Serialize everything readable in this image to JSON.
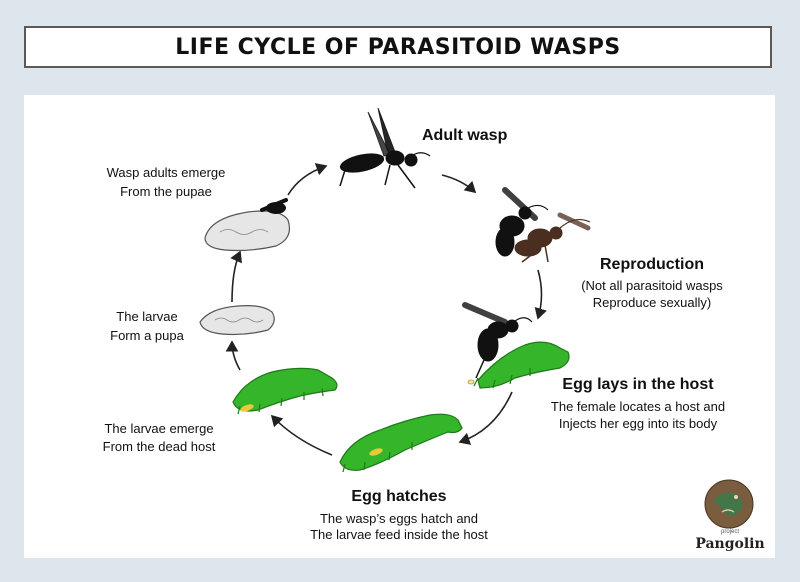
{
  "title": "LIFE CYCLE OF PARASITOID WASPS",
  "stages": {
    "adult": {
      "heading": "Adult wasp"
    },
    "reproduction": {
      "heading": "Reproduction",
      "line1": "(Not all parasitoid wasps",
      "line2": "Reproduce sexually)"
    },
    "egg_lays": {
      "heading": "Egg lays in the host",
      "line1": "The female locates a host and",
      "line2": "Injects her egg into its body"
    },
    "egg_hatches": {
      "heading": "Egg hatches",
      "line1": "The wasp’s eggs hatch and",
      "line2": "The larvae feed inside the host"
    },
    "larvae_emerge": {
      "line1": "The larvae emerge",
      "line2": "From the dead host"
    },
    "pupa": {
      "line1": "The larvae",
      "line2": "Form a pupa"
    },
    "emerge": {
      "line1": "Wasp adults emerge",
      "line2": "From the pupae"
    }
  },
  "brand": {
    "tagline": "project",
    "name": "Pangolin"
  },
  "colors": {
    "background": "#dce6ec",
    "caterpillar": "#35b52a",
    "egg": "#e8c93a",
    "wasp": "#111111",
    "pupa": "#e6e6e6"
  }
}
